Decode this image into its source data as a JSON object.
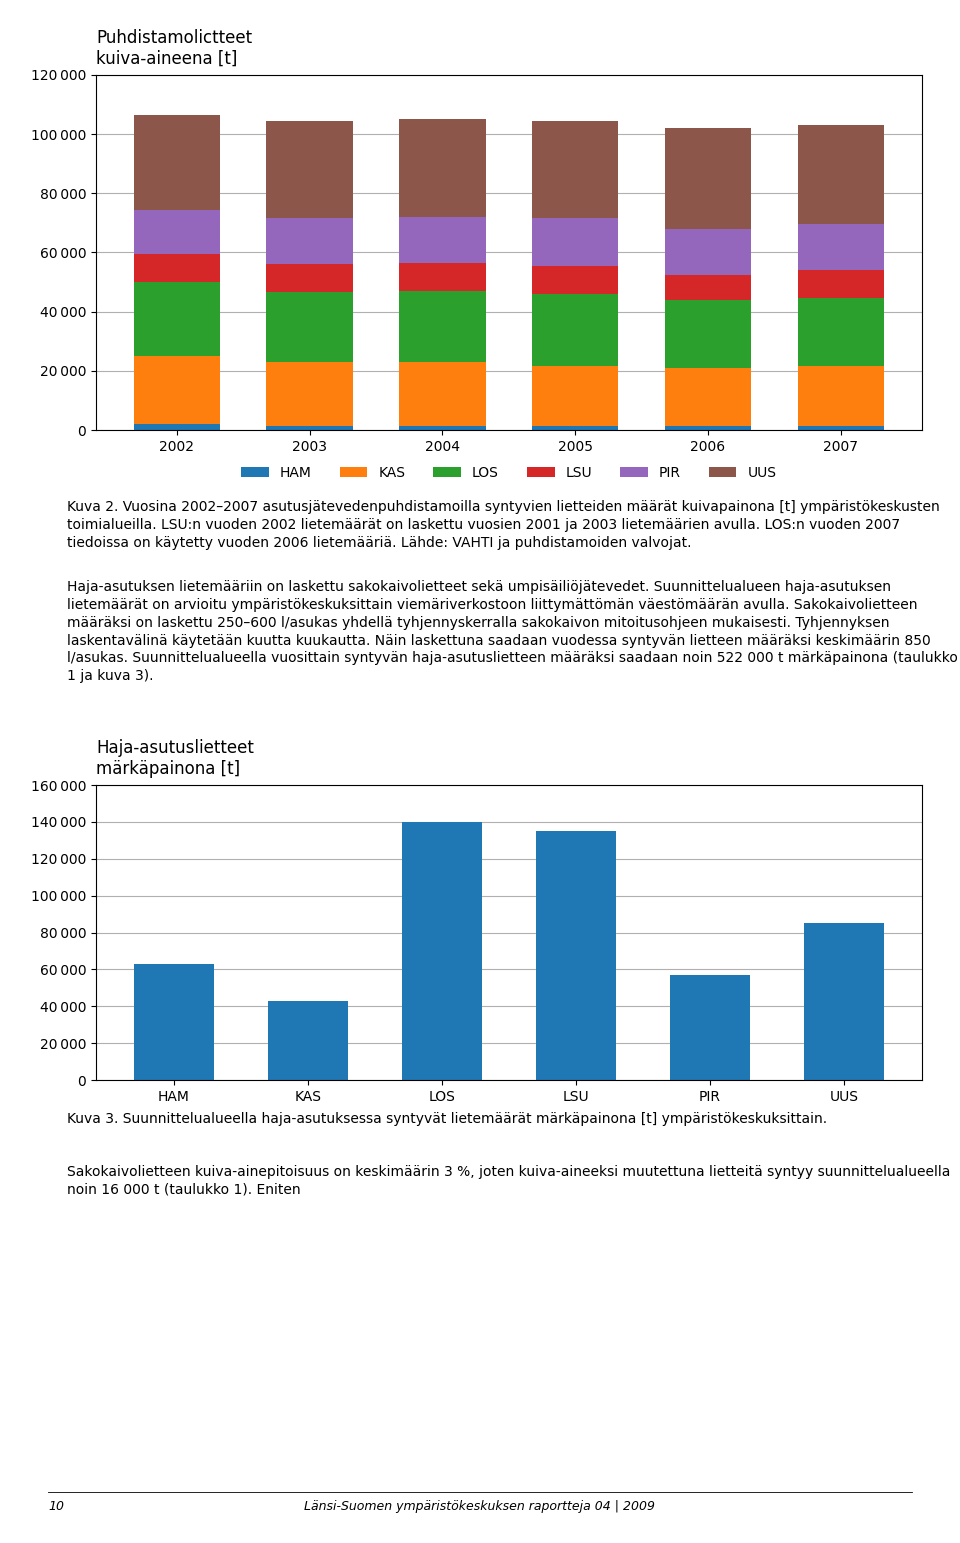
{
  "chart_data": [
    {
      "type": "bar",
      "stacked": true,
      "title": "Puhdistamolictteet\nkuiva-aineena [t]",
      "categories": [
        "2002",
        "2003",
        "2004",
        "2005",
        "2006",
        "2007"
      ],
      "series": [
        {
          "name": "HAM",
          "values": [
            2000,
            1500,
            1500,
            1500,
            1500,
            1500
          ]
        },
        {
          "name": "KAS",
          "values": [
            23000,
            21500,
            21500,
            20000,
            19500,
            20000
          ]
        },
        {
          "name": "LOS",
          "values": [
            25000,
            23500,
            24000,
            24500,
            23000,
            23000
          ]
        },
        {
          "name": "LSU",
          "values": [
            9500,
            9500,
            9500,
            9500,
            8500,
            9500
          ]
        },
        {
          "name": "PIR",
          "values": [
            15000,
            15500,
            15500,
            16000,
            15500,
            15500
          ]
        },
        {
          "name": "UUS",
          "values": [
            32000,
            33000,
            33000,
            33000,
            34000,
            33500
          ]
        }
      ],
      "ylim": [
        0,
        120000
      ],
      "yticks": [
        0,
        {
          "value": 20000,
          "label": "20 000"
        },
        {
          "value": 40000,
          "label": "40 000"
        },
        {
          "value": 60000,
          "label": "60 000"
        },
        {
          "value": 80000,
          "label": "80 000"
        },
        {
          "value": 100000,
          "label": "100 000"
        },
        {
          "value": 120000,
          "label": "120 000"
        }
      ],
      "grid": true,
      "legend": "upper center",
      "annotations": [
        "Kuva 2. Vuosina 2002–2007 asutusjätevedenpuhdistamoilla syntyvien lietteiden määrät kuivapainona [t] ympäristökeskusten toimialueilla. LSU:n vuoden 2002 lietemäärät on laskettu vuosien 2001 ja 2003 lietemäärien avulla. LOS:n vuoden 2007 tiedoissa on käytetty vuoden 2006 lietemääriä. Lähde: VAHTI ja puhdistamoiden valvojat.",
        "Haja-asutuksen lietemääriin on laskettu sakokaivolietteet sekä umpisäiliöjätevedet. Suunnittelualueen haja-asutuksen lietemäärät on arvioitu ympäristökeskuksittain viemäriverkostoon liittymättömän väestömäärän avulla. Sakokaivolietteen määräksi on laskettu 250–600 l/asukas yhdellä tyhjennyskerralla sakokaivon mitoitusohjeen mukaisesti. Tyhjennyksen laskentavälinä käytetään kuutta kuukautta. Näin laskettuna saadaan vuodessa syntyvän lietteen määräksi keskimäärin 850 l/asukas. Suunnittelualueella vuosittain syntyvän haja-asutuslietteen määräksi saadaan noin 522 000 t märkäpainona (taulukko 1 ja kuva 3)."
      ]
    },
    {
      "type": "bar",
      "title": "Haja-asutuslietteet\nmärkäpainona [t]",
      "categories": [
        "HAM",
        "KAS",
        "LOS",
        "LSU",
        "PIR",
        "UUS"
      ],
      "values": [
        63000,
        43000,
        140000,
        135000,
        57000,
        85000
      ],
      "ylim": [
        0,
        160000
      ],
      "yticks": [
        0,
        {
          "value": 20000,
          "label": "20 000"
        },
        {
          "value": 40000,
          "label": "40 000"
        },
        {
          "value": 60000,
          "label": "60 000"
        },
        {
          "value": 80000,
          "label": "80 000"
        },
        {
          "value": 100000,
          "label": "100 000"
        },
        {
          "value": 120000,
          "label": "120 000"
        },
        {
          "value": 140000,
          "label": "140 000"
        },
        {
          "value": 160000,
          "label": "160 000"
        }
      ],
      "grid": true,
      "annotations": [
        "Kuva 3. Suunnittelualueella haja-asutuksessa syntyvät lietemäärät märkäpainona [t] ympäristökeskuksittain.",
        "Sakokaivolietteen kuiva-ainepitoisuus on keskimäärin 3 %, joten kuiva-aineeksi muutettuna lietteitä syntyy suunnittelualueella noin 16 000 t (taulukko 1). Eniten"
      ]
    }
  ],
  "annotations": [
    "10",
    "Länsi-Suomen ympäristökeskuksen raportteja 04 | 2009"
  ]
}
